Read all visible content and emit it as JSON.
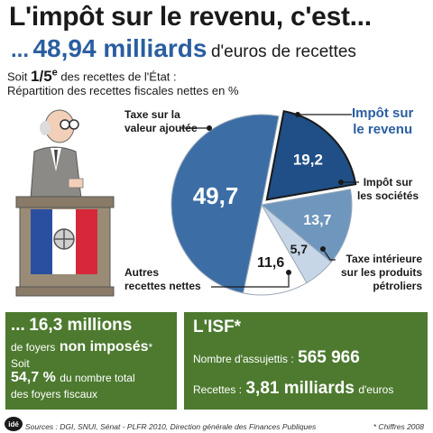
{
  "header": {
    "title": "L'impôt sur le revenu, c'est...",
    "prefix": "...",
    "amount": "48,94 milliards",
    "amount_suffix": "d'euros de recettes",
    "share_prefix": "Soit",
    "share_fraction_num": "1/5",
    "share_fraction_sup": "e",
    "share_suffix": "des recettes de l'État :",
    "subtitle": "Répartition des recettes fiscales nettes en %"
  },
  "chart_data": {
    "type": "pie",
    "title": "Répartition des recettes fiscales nettes en %",
    "slices": [
      {
        "label": "Impôt sur le revenu",
        "value": 19.2,
        "value_label": "19,2",
        "color": "#1f4f86",
        "exploded": true
      },
      {
        "label": "Impôt sur les sociétés",
        "value": 13.7,
        "value_label": "13,7",
        "color": "#6f97bd"
      },
      {
        "label": "Taxe intérieure sur les produits pétroliers",
        "value": 5.7,
        "value_label": "5,7",
        "color": "#c6d6e6"
      },
      {
        "label": "Autres recettes nettes",
        "value": 11.6,
        "value_label": "11,6",
        "color": "#ffffff"
      },
      {
        "label": "Taxe sur la valeur ajoutée",
        "value": 49.7,
        "value_label": "49,7",
        "color": "#3c6ea5"
      }
    ]
  },
  "labels": {
    "ir_line1": "Impôt sur",
    "ir_line2": "le revenu",
    "is_line1": "Impôt sur",
    "is_line2": "les sociétés",
    "tipp_line1": "Taxe intérieure",
    "tipp_line2": "sur les produits",
    "tipp_line3": "pétroliers",
    "autres_line1": "Autres",
    "autres_line2": "recettes nettes",
    "tva_line1": "Taxe sur la",
    "tva_line2": "valeur ajoutée"
  },
  "box_left": {
    "prefix": "...",
    "foyers": "16,3 millions",
    "line2a": "de foyers",
    "line2b": "non imposés",
    "star": "*",
    "line3": "Soit",
    "pct": "54,7 %",
    "line4a": "du nombre total",
    "line5": "des foyers fiscaux"
  },
  "box_right": {
    "title": "L'ISF*",
    "assujettis_label": "Nombre d'assujettis :",
    "assujettis_value": "565 966",
    "recettes_label": "Recettes :",
    "recettes_value": "3,81 milliards",
    "recettes_unit": "d'euros"
  },
  "footer": {
    "logo": "idé",
    "source": "Sources : DGI, SNUI, Sénat - PLFR 2010, Direction générale des Finances Publiques",
    "note": "* Chiffres 2008"
  },
  "colors": {
    "accent_blue": "#2a5ea0",
    "box_green": "#4d7a2f",
    "flag_blue": "#2b4fa0",
    "flag_red": "#d6283a"
  }
}
